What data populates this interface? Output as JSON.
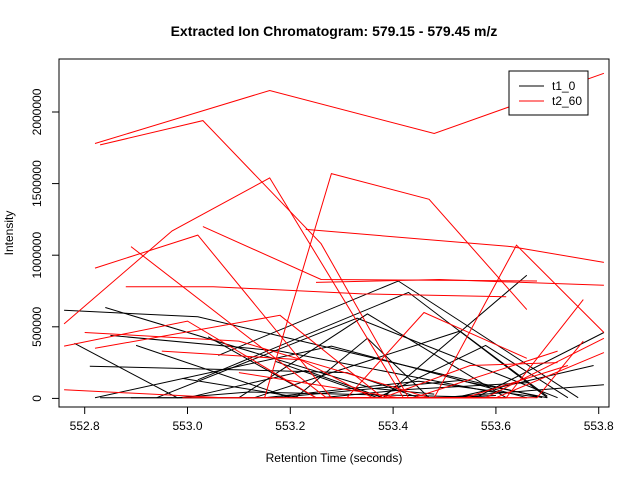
{
  "chart_data": {
    "type": "line",
    "title": "Extracted Ion Chromatogram: 579.15 - 579.45 m/z",
    "xlabel": "Retention Time (seconds)",
    "ylabel": "Intensity",
    "xlim": [
      552.75,
      553.82
    ],
    "ylim": [
      -60000,
      2370000
    ],
    "x_ticks": [
      552.8,
      553.0,
      553.2,
      553.4,
      553.6,
      553.8
    ],
    "y_ticks": [
      0,
      500000,
      1000000,
      1500000,
      2000000
    ],
    "grid": false,
    "legend_position": "top-right",
    "series_colors": {
      "t1_0": "#000000",
      "t2_60": "#ff0000"
    },
    "series": [
      {
        "name": "t1_0",
        "color": "#000000",
        "segments": [
          [
            [
              552.76,
              615000
            ],
            [
              553.02,
              570000
            ],
            [
              553.69,
              5000
            ]
          ],
          [
            [
              552.84,
              635000
            ],
            [
              553.36,
              70000
            ],
            [
              553.48,
              30000
            ]
          ],
          [
            [
              552.78,
              385000
            ],
            [
              552.98,
              5000
            ],
            [
              553.12,
              45000
            ],
            [
              553.62,
              5000
            ]
          ],
          [
            [
              552.81,
              225000
            ],
            [
              553.31,
              180000
            ],
            [
              553.45,
              5000
            ]
          ],
          [
            [
              552.85,
              440000
            ],
            [
              553.18,
              330000
            ],
            [
              553.6,
              40000
            ]
          ],
          [
            [
              552.89,
              5000
            ],
            [
              553.17,
              5000
            ],
            [
              553.53,
              125000
            ],
            [
              553.7,
              5000
            ]
          ],
          [
            [
              552.83,
              5000
            ],
            [
              553.15,
              5000
            ],
            [
              553.45,
              120000
            ],
            [
              553.68,
              10000
            ]
          ],
          [
            [
              552.82,
              5000
            ],
            [
              553.28,
              365000
            ],
            [
              553.66,
              5000
            ]
          ],
          [
            [
              552.9,
              370000
            ],
            [
              553.2,
              5000
            ],
            [
              553.49,
              5000
            ],
            [
              553.81,
              95000
            ]
          ],
          [
            [
              552.94,
              5000
            ],
            [
              553.33,
              560000
            ],
            [
              553.72,
              5000
            ]
          ],
          [
            [
              552.99,
              140000
            ],
            [
              553.22,
              5000
            ],
            [
              553.56,
              5000
            ],
            [
              553.81,
              460000
            ]
          ],
          [
            [
              553.02,
              130000
            ],
            [
              553.43,
              740000
            ],
            [
              553.7,
              5000
            ]
          ],
          [
            [
              553.04,
              430000
            ],
            [
              553.25,
              5000
            ],
            [
              553.52,
              5000
            ],
            [
              553.79,
              230000
            ]
          ],
          [
            [
              553.06,
              300000
            ],
            [
              553.41,
              820000
            ],
            [
              553.76,
              5000
            ]
          ],
          [
            [
              553.1,
              5000
            ],
            [
              553.35,
              590000
            ],
            [
              553.62,
              5000
            ]
          ],
          [
            [
              553.0,
              5000
            ],
            [
              553.23,
              195000
            ],
            [
              553.38,
              5000
            ],
            [
              553.66,
              860000
            ]
          ],
          [
            [
              553.13,
              5000
            ],
            [
              553.53,
              470000
            ],
            [
              553.7,
              15000
            ]
          ],
          [
            [
              553.17,
              260000
            ],
            [
              553.37,
              5000
            ],
            [
              553.58,
              370000
            ],
            [
              553.74,
              5000
            ]
          ],
          [
            [
              553.26,
              5000
            ],
            [
              553.42,
              60000
            ],
            [
              553.66,
              110000
            ]
          ],
          [
            [
              553.21,
              5000
            ],
            [
              553.35,
              420000
            ],
            [
              553.47,
              5000
            ],
            [
              553.6,
              20000
            ]
          ]
        ]
      },
      {
        "name": "t2_60",
        "color": "#ff0000",
        "segments": [
          [
            [
              552.83,
              1770000
            ],
            [
              553.03,
              1940000
            ],
            [
              553.26,
              1080000
            ],
            [
              553.43,
              5000
            ],
            [
              553.6,
              5000
            ]
          ],
          [
            [
              552.82,
              1780000
            ],
            [
              553.16,
              2150000
            ],
            [
              553.48,
              1850000
            ],
            [
              553.81,
              2270000
            ]
          ],
          [
            [
              552.76,
              520000
            ],
            [
              552.97,
              1170000
            ],
            [
              553.16,
              1540000
            ],
            [
              553.42,
              5000
            ],
            [
              553.62,
              5000
            ],
            [
              553.77,
              690000
            ]
          ],
          [
            [
              552.82,
              910000
            ],
            [
              553.02,
              1140000
            ],
            [
              553.28,
              5000
            ],
            [
              553.48,
              5000
            ],
            [
              553.64,
              1070000
            ],
            [
              553.81,
              460000
            ]
          ],
          [
            [
              552.89,
              1060000
            ],
            [
              553.27,
              5000
            ],
            [
              553.58,
              5000
            ],
            [
              553.81,
              420000
            ]
          ],
          [
            [
              553.03,
              1200000
            ],
            [
              553.26,
              830000
            ],
            [
              553.68,
              820000
            ]
          ],
          [
            [
              552.88,
              780000
            ],
            [
              553.05,
              780000
            ],
            [
              553.34,
              730000
            ],
            [
              553.62,
              710000
            ]
          ],
          [
            [
              553.15,
              5000
            ],
            [
              553.28,
              1570000
            ],
            [
              553.47,
              1390000
            ],
            [
              553.66,
              620000
            ]
          ],
          [
            [
              553.23,
              1180000
            ],
            [
              553.63,
              1060000
            ],
            [
              553.81,
              950000
            ]
          ],
          [
            [
              553.25,
              810000
            ],
            [
              553.49,
              830000
            ],
            [
              553.81,
              790000
            ]
          ],
          [
            [
              552.76,
              365000
            ],
            [
              553.0,
              540000
            ],
            [
              553.25,
              5000
            ],
            [
              553.44,
              5000
            ],
            [
              553.72,
              330000
            ]
          ],
          [
            [
              552.8,
              460000
            ],
            [
              553.1,
              400000
            ],
            [
              553.47,
              5000
            ],
            [
              553.68,
              5000
            ],
            [
              553.77,
              400000
            ]
          ],
          [
            [
              552.82,
              350000
            ],
            [
              553.18,
              580000
            ],
            [
              553.38,
              5000
            ],
            [
              553.54,
              5000
            ],
            [
              553.74,
              230000
            ]
          ],
          [
            [
              552.76,
              60000
            ],
            [
              553.07,
              5000
            ],
            [
              553.38,
              5000
            ],
            [
              553.55,
              230000
            ],
            [
              553.72,
              250000
            ]
          ],
          [
            [
              552.95,
              330000
            ],
            [
              553.22,
              270000
            ],
            [
              553.36,
              5000
            ],
            [
              553.66,
              5000
            ]
          ],
          [
            [
              552.99,
              5000
            ],
            [
              553.31,
              5000
            ],
            [
              553.46,
              600000
            ],
            [
              553.66,
              280000
            ]
          ],
          [
            [
              553.1,
              180000
            ],
            [
              553.41,
              5000
            ],
            [
              553.6,
              5000
            ],
            [
              553.81,
              320000
            ]
          ]
        ]
      }
    ]
  }
}
